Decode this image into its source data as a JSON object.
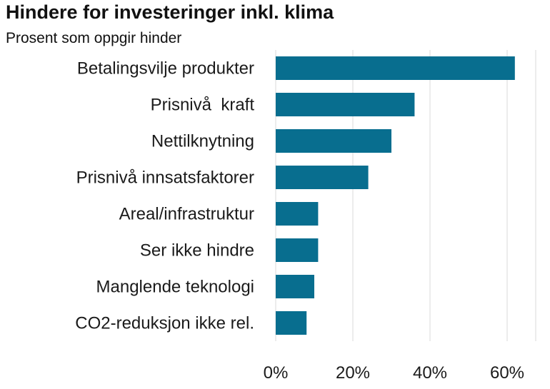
{
  "title": "Hindere for investeringer inkl. klima",
  "subtitle": "Prosent som oppgir hinder",
  "chart_data": {
    "type": "bar",
    "orientation": "horizontal",
    "title": "Hindere for investeringer inkl. klima",
    "subtitle": "Prosent som oppgir hinder",
    "categories": [
      "Betalingsvilje produkter",
      "Prisnivå  kraft",
      "Nettilknytning",
      "Prisnivå innsatsfaktorer",
      "Areal/infrastruktur",
      "Ser ikke hindre",
      "Manglende teknologi",
      "CO2-reduksjon ikke rel."
    ],
    "values": [
      62,
      36,
      30,
      24,
      11,
      11,
      10,
      8
    ],
    "xlim": [
      0,
      70
    ],
    "xticks": [
      0,
      20,
      40,
      60
    ],
    "xtick_labels": [
      "0%",
      "20%",
      "40%",
      "60%"
    ],
    "bar_color": "#086e8f",
    "grid": true,
    "grid_color": "#d9d9d9"
  }
}
